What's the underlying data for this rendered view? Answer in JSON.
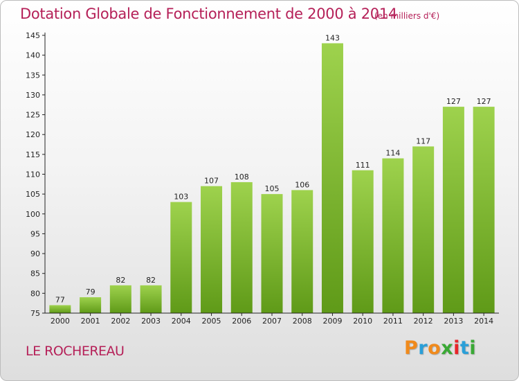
{
  "chart_data": {
    "type": "bar",
    "title": "Dotation Globale de Fonctionnement de 2000 à 2014",
    "subtitle": "(en milliers d'€)",
    "categories": [
      "2000",
      "2001",
      "2002",
      "2003",
      "2004",
      "2005",
      "2006",
      "2007",
      "2008",
      "2009",
      "2010",
      "2011",
      "2012",
      "2013",
      "2014"
    ],
    "values": [
      77,
      79,
      82,
      82,
      103,
      107,
      108,
      105,
      106,
      143,
      111,
      114,
      117,
      127,
      127
    ],
    "ylim": [
      75,
      145
    ],
    "yticks": [
      75,
      80,
      85,
      90,
      95,
      100,
      105,
      110,
      115,
      120,
      125,
      130,
      135,
      140,
      145
    ],
    "grid": false,
    "legend": "none",
    "bar_color_top": "#9ed24d",
    "bar_color_bottom": "#5f9a18"
  },
  "footer": {
    "commune": "LE ROCHEREAU",
    "logo": [
      "P",
      "r",
      "o",
      "x",
      "i",
      "t",
      "i"
    ],
    "logo_colors": [
      "#f08a1c",
      "#2a9fd8",
      "#f08a1c",
      "#3aa935",
      "#e8262b",
      "#2a9fd8",
      "#3aa935"
    ]
  },
  "colors": {
    "title": "#b52058",
    "axis": "#222222"
  }
}
